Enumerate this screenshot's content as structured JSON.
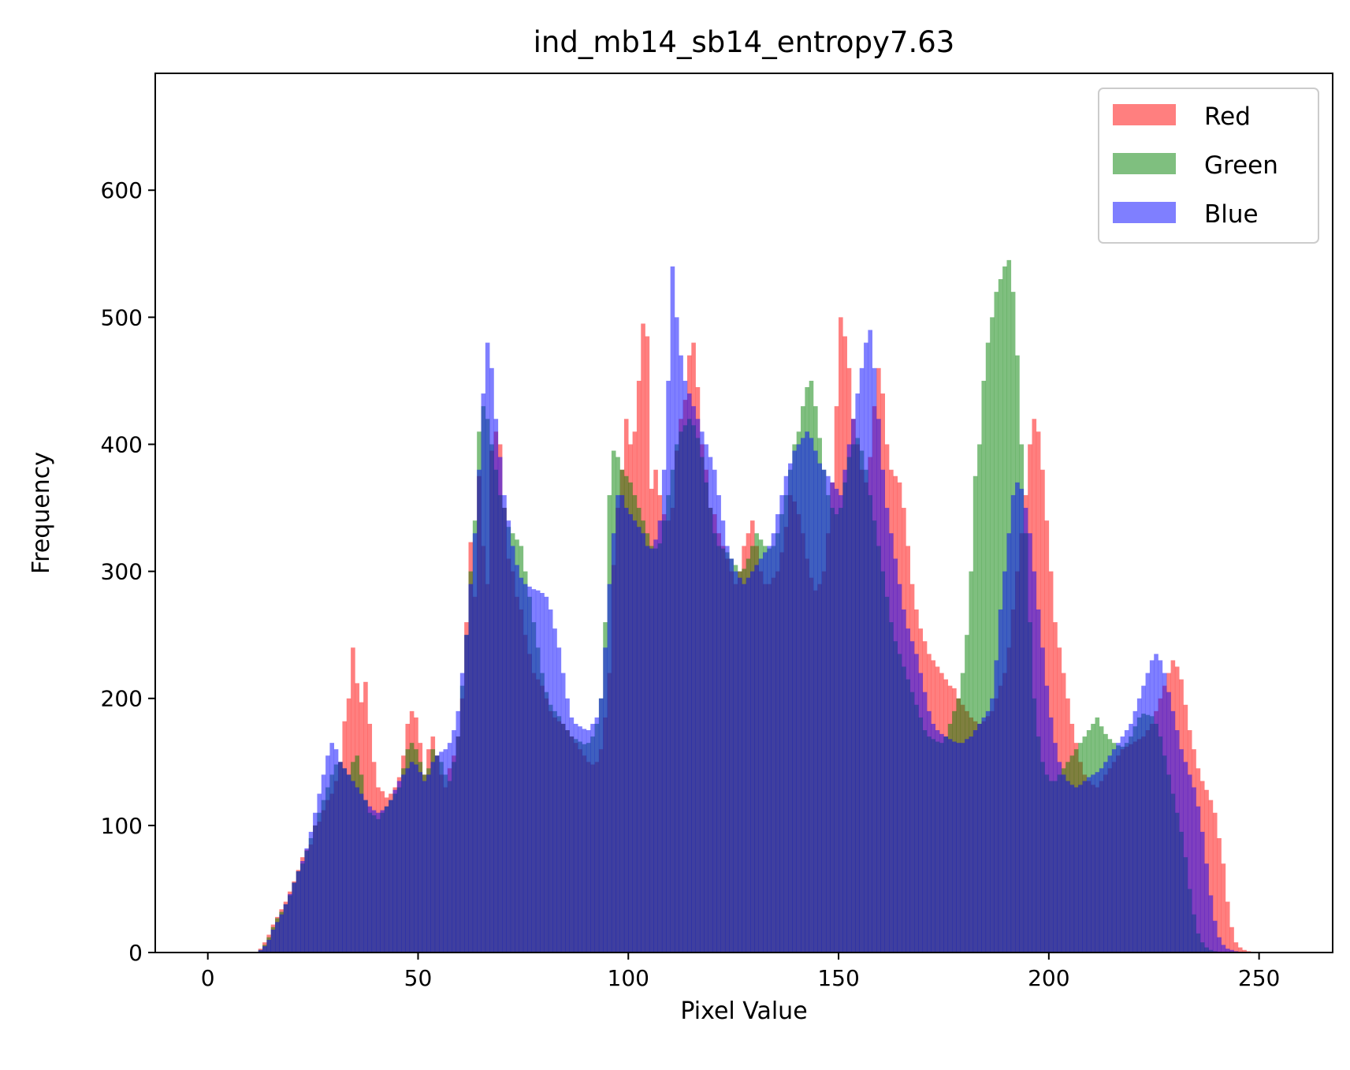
{
  "chart_data": {
    "type": "histogram",
    "title": "ind_mb14_sb14_entropy7.63",
    "xlabel": "Pixel Value",
    "ylabel": "Frequency",
    "xlim": [
      -12.5,
      267.5
    ],
    "ylim": [
      0,
      692
    ],
    "xticks": [
      0,
      50,
      100,
      150,
      200,
      250
    ],
    "yticks": [
      0,
      100,
      200,
      300,
      400,
      500,
      600
    ],
    "grid": false,
    "legend": {
      "placement": "top-right",
      "entries": [
        "Red",
        "Green",
        "Blue"
      ]
    },
    "bin_start": 0,
    "bin_width": 1,
    "series": [
      {
        "name": "Red",
        "color": "#ff0000",
        "alpha": 0.5,
        "values": [
          0,
          0,
          0,
          0,
          0,
          0,
          0,
          0,
          0,
          0,
          0,
          0,
          3,
          8,
          14,
          22,
          28,
          34,
          40,
          48,
          56,
          65,
          75,
          81,
          85,
          100,
          103,
          112,
          120,
          125,
          135,
          150,
          182,
          200,
          240,
          212,
          197,
          213,
          180,
          150,
          130,
          127,
          122,
          125,
          130,
          138,
          155,
          180,
          190,
          185,
          165,
          140,
          160,
          170,
          155,
          140,
          130,
          145,
          155,
          170,
          200,
          260,
          323,
          280,
          375,
          320,
          290,
          395,
          410,
          400,
          350,
          310,
          300,
          280,
          270,
          250,
          235,
          220,
          215,
          210,
          200,
          190,
          185,
          182,
          180,
          175,
          170,
          165,
          160,
          155,
          150,
          148,
          150,
          160,
          185,
          220,
          305,
          350,
          380,
          420,
          400,
          410,
          450,
          495,
          485,
          365,
          380,
          360,
          345,
          340,
          350,
          395,
          420,
          435,
          470,
          480,
          445,
          400,
          380,
          350,
          345,
          330,
          320,
          310,
          300,
          290,
          300,
          320,
          330,
          340,
          320,
          300,
          290,
          290,
          295,
          300,
          315,
          335,
          360,
          355,
          345,
          330,
          310,
          295,
          285,
          290,
          300,
          330,
          370,
          430,
          500,
          485,
          460,
          420,
          400,
          380,
          370,
          390,
          430,
          460,
          440,
          400,
          380,
          375,
          370,
          350,
          320,
          290,
          270,
          255,
          245,
          235,
          230,
          225,
          220,
          215,
          210,
          208,
          200,
          195,
          190,
          185,
          182,
          180,
          182,
          186,
          190,
          200,
          210,
          220,
          240,
          270,
          300,
          330,
          360,
          400,
          420,
          410,
          380,
          340,
          300,
          260,
          240,
          220,
          200,
          180,
          165,
          150,
          140,
          135,
          132,
          130,
          135,
          140,
          145,
          150,
          155,
          160,
          162,
          164,
          166,
          168,
          170,
          175,
          180,
          190,
          200,
          210,
          220,
          230,
          225,
          215,
          195,
          175,
          160,
          145,
          135,
          128,
          120,
          110,
          90,
          70,
          40,
          20,
          8,
          4,
          2,
          1,
          0,
          0,
          0,
          0,
          0,
          0,
          0,
          0,
          0,
          0
        ]
      },
      {
        "name": "Green",
        "color": "#008000",
        "alpha": 0.5,
        "values": [
          0,
          0,
          0,
          0,
          0,
          0,
          0,
          0,
          0,
          0,
          0,
          0,
          2,
          6,
          12,
          20,
          27,
          32,
          38,
          45,
          55,
          64,
          70,
          80,
          90,
          100,
          110,
          120,
          130,
          140,
          148,
          150,
          145,
          140,
          150,
          155,
          140,
          120,
          110,
          108,
          105,
          110,
          115,
          120,
          125,
          130,
          145,
          160,
          165,
          160,
          150,
          140,
          145,
          160,
          155,
          150,
          140,
          135,
          150,
          170,
          210,
          250,
          300,
          340,
          410,
          430,
          420,
          400,
          380,
          360,
          350,
          335,
          330,
          325,
          320,
          300,
          280,
          260,
          240,
          220,
          205,
          195,
          190,
          186,
          180,
          175,
          170,
          168,
          166,
          164,
          165,
          170,
          180,
          200,
          260,
          360,
          395,
          390,
          380,
          375,
          370,
          360,
          350,
          340,
          330,
          320,
          318,
          322,
          340,
          360,
          380,
          400,
          410,
          415,
          420,
          415,
          405,
          390,
          370,
          350,
          330,
          320,
          318,
          315,
          310,
          305,
          300,
          302,
          310,
          320,
          330,
          325,
          320,
          318,
          320,
          330,
          345,
          360,
          380,
          400,
          410,
          430,
          445,
          450,
          430,
          405,
          380,
          360,
          350,
          345,
          350,
          370,
          390,
          400,
          405,
          395,
          380,
          360,
          340,
          320,
          300,
          280,
          260,
          245,
          235,
          225,
          215,
          205,
          195,
          185,
          175,
          170,
          168,
          166,
          165,
          170,
          180,
          190,
          200,
          220,
          250,
          300,
          375,
          400,
          450,
          480,
          500,
          520,
          530,
          540,
          545,
          520,
          470,
          400,
          330,
          260,
          200,
          170,
          150,
          140,
          135,
          135,
          140,
          145,
          150,
          155,
          160,
          165,
          170,
          175,
          180,
          185,
          178,
          172,
          168,
          165,
          163,
          162,
          165,
          170,
          178,
          185,
          188,
          187,
          186,
          180,
          170,
          155,
          140,
          125,
          110,
          95,
          75,
          50,
          30,
          15,
          8,
          4,
          2,
          1,
          0,
          0,
          0,
          0,
          0,
          0,
          0,
          0,
          0,
          0
        ]
      },
      {
        "name": "Blue",
        "color": "#0000ff",
        "alpha": 0.5,
        "values": [
          0,
          0,
          0,
          0,
          0,
          0,
          0,
          0,
          0,
          0,
          0,
          0,
          2,
          5,
          10,
          18,
          24,
          30,
          38,
          46,
          55,
          64,
          72,
          82,
          95,
          110,
          125,
          140,
          155,
          165,
          160,
          150,
          145,
          140,
          135,
          130,
          125,
          120,
          115,
          112,
          110,
          112,
          115,
          120,
          128,
          135,
          140,
          145,
          150,
          148,
          142,
          135,
          140,
          150,
          155,
          158,
          160,
          165,
          175,
          190,
          220,
          250,
          290,
          330,
          380,
          440,
          480,
          460,
          420,
          390,
          360,
          340,
          320,
          305,
          295,
          290,
          288,
          286,
          285,
          283,
          280,
          270,
          255,
          240,
          220,
          200,
          185,
          180,
          178,
          176,
          175,
          180,
          185,
          200,
          240,
          290,
          330,
          360,
          360,
          350,
          345,
          340,
          335,
          330,
          320,
          318,
          325,
          340,
          380,
          450,
          540,
          500,
          470,
          450,
          440,
          430,
          420,
          410,
          400,
          390,
          380,
          360,
          340,
          320,
          310,
          300,
          295,
          290,
          295,
          300,
          305,
          310,
          315,
          320,
          330,
          345,
          360,
          375,
          385,
          395,
          400,
          405,
          410,
          405,
          395,
          385,
          380,
          375,
          370,
          365,
          360,
          380,
          400,
          420,
          440,
          460,
          480,
          490,
          460,
          420,
          380,
          350,
          330,
          310,
          290,
          270,
          255,
          245,
          235,
          220,
          205,
          190,
          180,
          175,
          172,
          170,
          168,
          166,
          165,
          165,
          168,
          170,
          175,
          180,
          185,
          190,
          200,
          230,
          270,
          300,
          330,
          360,
          370,
          365,
          350,
          330,
          300,
          270,
          240,
          210,
          185,
          165,
          150,
          140,
          135,
          132,
          130,
          132,
          135,
          138,
          140,
          142,
          145,
          150,
          155,
          160,
          165,
          170,
          175,
          180,
          190,
          200,
          210,
          220,
          230,
          235,
          230,
          220,
          205,
          190,
          175,
          160,
          150,
          140,
          130,
          115,
          95,
          70,
          45,
          25,
          12,
          6,
          3,
          2,
          1,
          0,
          0,
          0,
          0,
          0,
          0,
          0,
          0,
          0,
          0,
          0
        ]
      }
    ]
  }
}
